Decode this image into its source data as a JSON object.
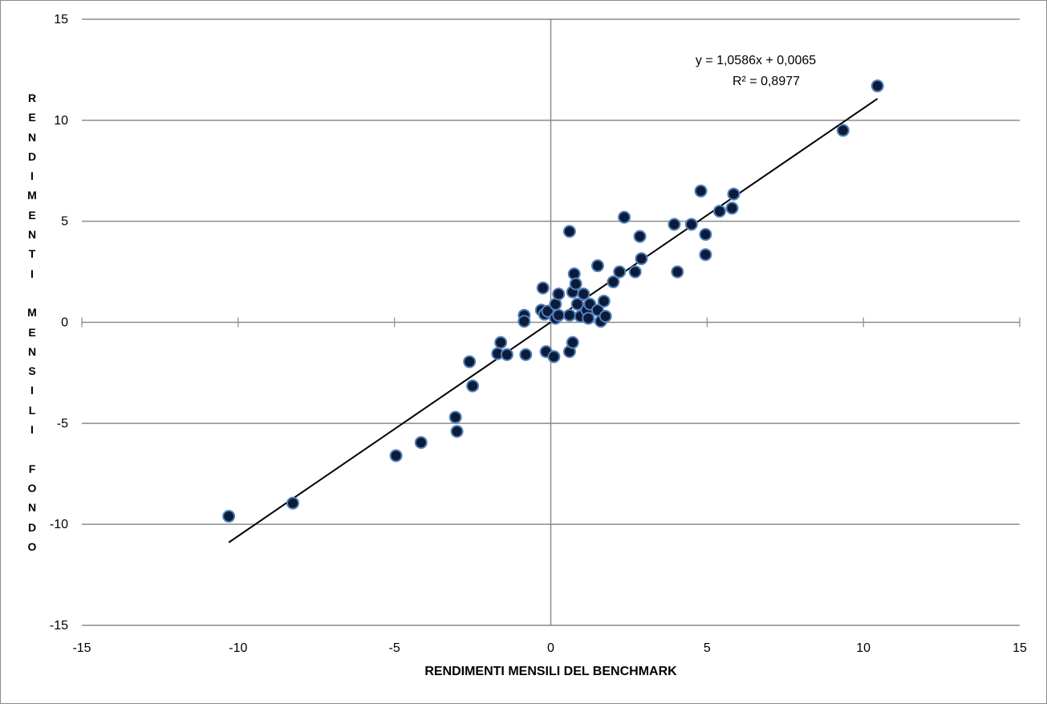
{
  "chart_data": {
    "type": "scatter",
    "xlabel": "RENDIMENTI MENSILI DEL BENCHMARK",
    "ylabel": "RENDIMENTI MENSILI FONDO",
    "xlim": [
      -15,
      15
    ],
    "ylim": [
      -15,
      15
    ],
    "x_ticks": [
      "-15",
      "-10",
      "-5",
      "0",
      "5",
      "10",
      "15"
    ],
    "y_ticks": [
      "15",
      "10",
      "5",
      "0",
      "-5",
      "-10",
      "-15"
    ],
    "grid": "horizontal",
    "marker_color": "#0d1b38",
    "marker_edge_color": "#4f81bd",
    "trendline": {
      "slope": 1.0586,
      "intercept": 0.0065,
      "x_range": [
        -10.3,
        10.45
      ],
      "equation": "y = 1,0586x + 0,0065",
      "r_squared": "R² = 0,8977"
    },
    "points": [
      [
        -10.3,
        -9.6
      ],
      [
        -8.25,
        -8.95
      ],
      [
        -4.95,
        -6.6
      ],
      [
        -4.15,
        -5.95
      ],
      [
        -3.05,
        -4.7
      ],
      [
        -3.0,
        -5.4
      ],
      [
        -2.6,
        -1.95
      ],
      [
        -2.5,
        -3.15
      ],
      [
        -1.7,
        -1.55
      ],
      [
        -1.6,
        -1.0
      ],
      [
        -1.4,
        -1.6
      ],
      [
        -0.8,
        -1.6
      ],
      [
        -0.85,
        0.35
      ],
      [
        -0.85,
        0.05
      ],
      [
        -0.3,
        0.6
      ],
      [
        -0.25,
        1.7
      ],
      [
        -0.2,
        0.4
      ],
      [
        -0.15,
        -1.45
      ],
      [
        -0.1,
        0.55
      ],
      [
        0.1,
        -1.7
      ],
      [
        0.15,
        0.2
      ],
      [
        0.15,
        0.9
      ],
      [
        0.25,
        0.35
      ],
      [
        0.25,
        1.4
      ],
      [
        0.6,
        4.5
      ],
      [
        0.6,
        -1.45
      ],
      [
        0.6,
        0.35
      ],
      [
        0.7,
        1.5
      ],
      [
        0.75,
        2.4
      ],
      [
        0.7,
        -1.0
      ],
      [
        0.8,
        1.9
      ],
      [
        0.85,
        0.9
      ],
      [
        0.95,
        0.3
      ],
      [
        1.05,
        1.4
      ],
      [
        1.15,
        0.6
      ],
      [
        1.2,
        0.2
      ],
      [
        1.25,
        0.9
      ],
      [
        1.5,
        2.8
      ],
      [
        1.5,
        0.6
      ],
      [
        1.6,
        0.05
      ],
      [
        1.7,
        1.05
      ],
      [
        1.75,
        0.3
      ],
      [
        2.0,
        2.0
      ],
      [
        2.2,
        2.5
      ],
      [
        2.35,
        5.2
      ],
      [
        2.7,
        2.5
      ],
      [
        2.85,
        4.25
      ],
      [
        2.9,
        3.15
      ],
      [
        3.95,
        4.85
      ],
      [
        4.05,
        2.5
      ],
      [
        4.5,
        4.85
      ],
      [
        4.8,
        6.5
      ],
      [
        4.95,
        4.35
      ],
      [
        4.95,
        3.35
      ],
      [
        5.4,
        5.5
      ],
      [
        5.8,
        5.65
      ],
      [
        5.85,
        6.35
      ],
      [
        9.35,
        9.5
      ],
      [
        10.45,
        11.7
      ]
    ]
  }
}
